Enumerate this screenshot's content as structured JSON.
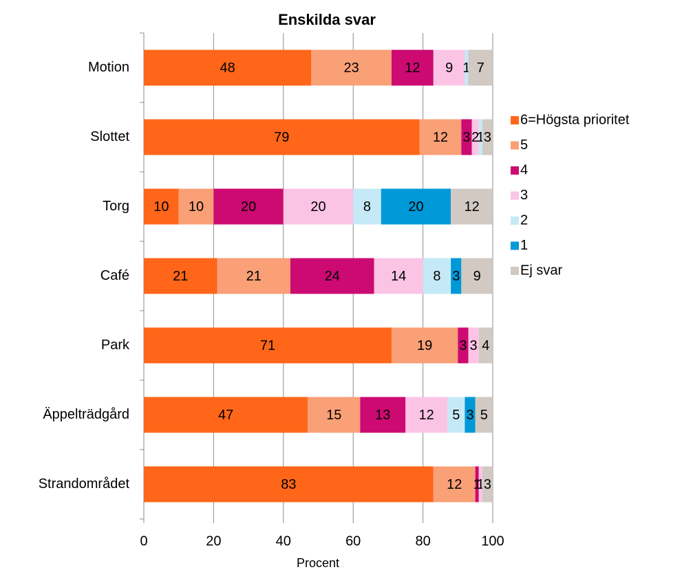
{
  "chart_data": {
    "type": "stacked_barh",
    "title": "Enskilda svar",
    "xlabel": "Procent",
    "categories": [
      "Motion",
      "Slottet",
      "Torg",
      "Café",
      "Park",
      "Äppelträdgård",
      "Strandområdet"
    ],
    "series": [
      {
        "name": "6=Högsta prioritet",
        "color": "#ff6619",
        "values": [
          48,
          79,
          10,
          21,
          71,
          47,
          83
        ]
      },
      {
        "name": "5",
        "color": "#f9a077",
        "values": [
          23,
          12,
          10,
          21,
          19,
          15,
          12
        ]
      },
      {
        "name": "4",
        "color": "#cc0a72",
        "values": [
          12,
          3,
          20,
          24,
          3,
          13,
          1
        ]
      },
      {
        "name": "3",
        "color": "#fcc4e4",
        "values": [
          9,
          2,
          20,
          14,
          3,
          12,
          1
        ]
      },
      {
        "name": "2",
        "color": "#c6e9f7",
        "values": [
          1,
          1,
          8,
          8,
          null,
          5,
          null
        ]
      },
      {
        "name": "1",
        "color": "#0099d8",
        "values": [
          null,
          null,
          20,
          3,
          null,
          3,
          null
        ]
      },
      {
        "name": "Ej svar",
        "color": "#d1c9c2",
        "values": [
          7,
          3,
          12,
          9,
          4,
          5,
          3
        ]
      }
    ],
    "xlim": [
      0,
      100
    ],
    "xticks": [
      0,
      20,
      40,
      60,
      80,
      100
    ],
    "grid": true,
    "legend": "right"
  }
}
